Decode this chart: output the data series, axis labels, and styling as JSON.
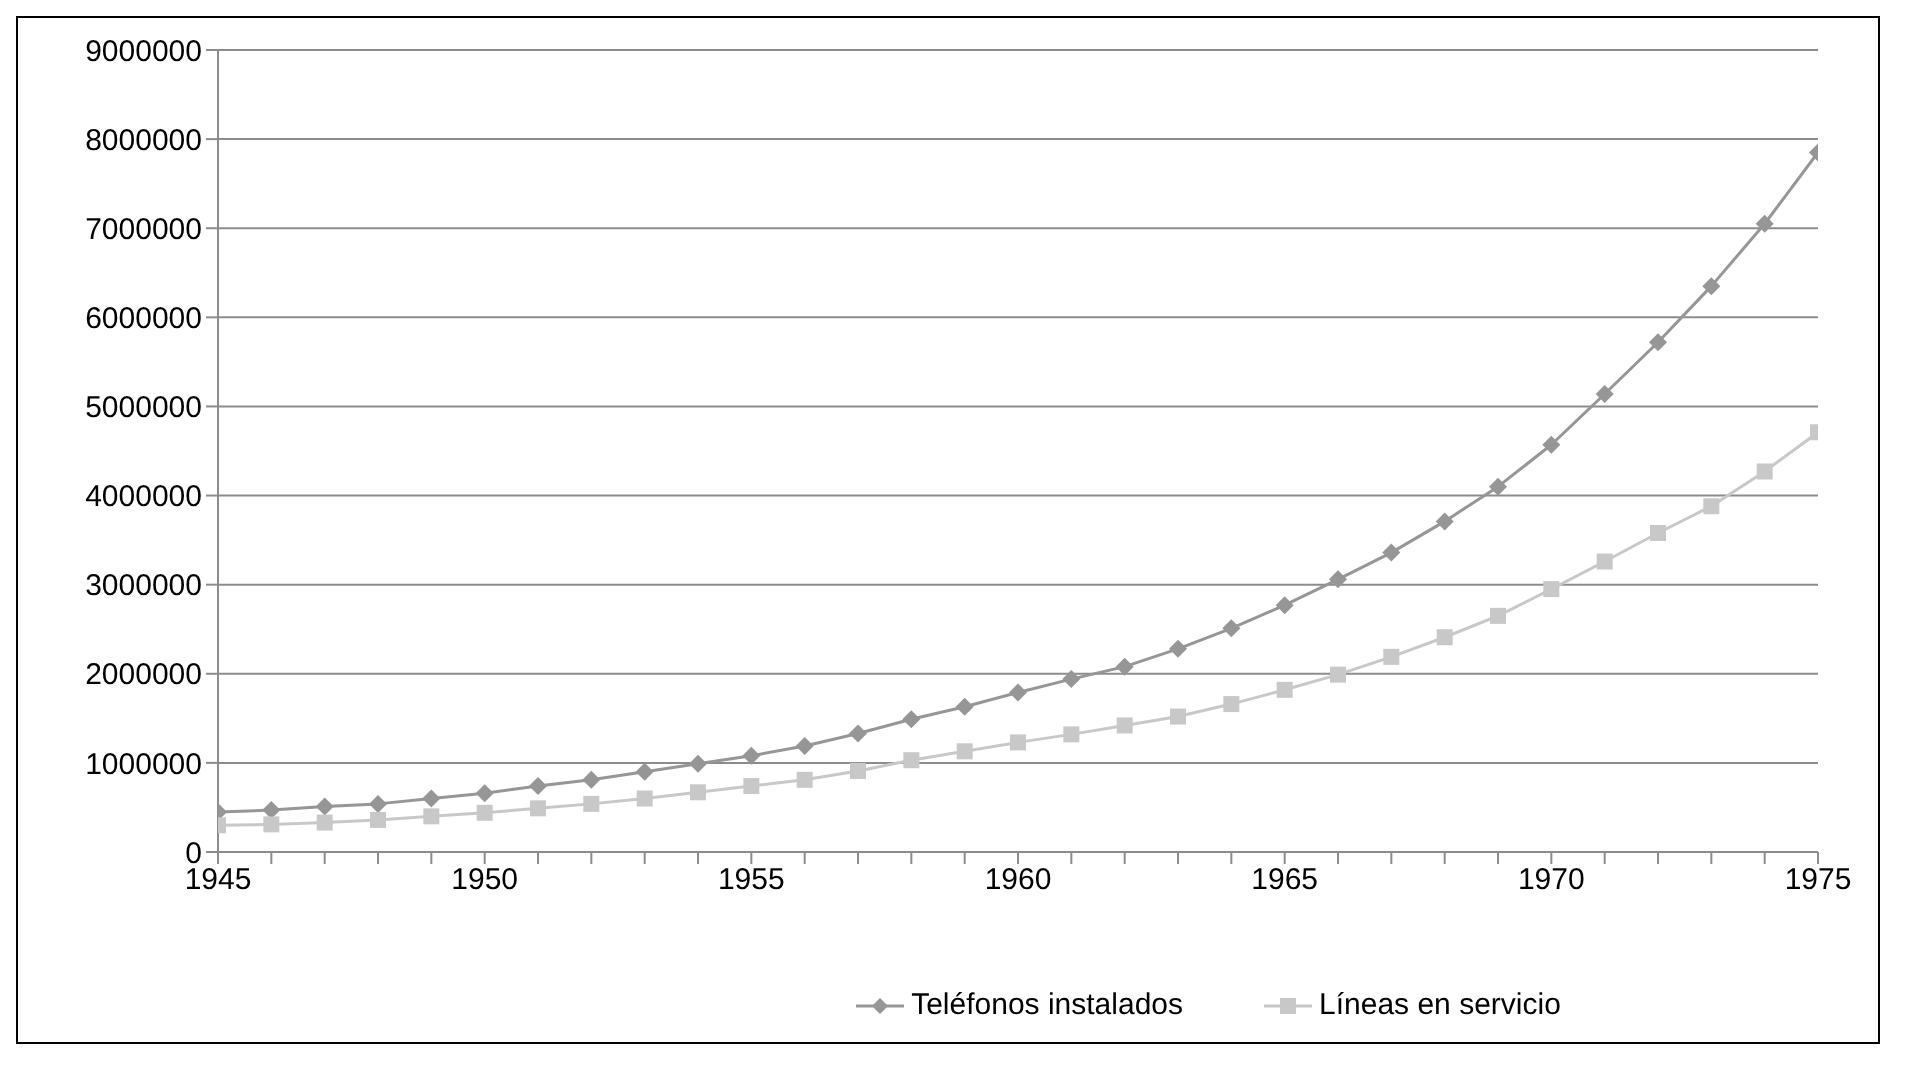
{
  "chart_data": {
    "type": "line",
    "x": [
      1945,
      1946,
      1947,
      1948,
      1949,
      1950,
      1951,
      1952,
      1953,
      1954,
      1955,
      1956,
      1957,
      1958,
      1959,
      1960,
      1961,
      1962,
      1963,
      1964,
      1965,
      1966,
      1967,
      1968,
      1969,
      1970,
      1971,
      1972,
      1973,
      1974,
      1975
    ],
    "series": [
      {
        "name": "Teléfonos instalados",
        "color": "#969696",
        "marker": "diamond",
        "values": [
          450000,
          470000,
          510000,
          540000,
          600000,
          660000,
          740000,
          810000,
          900000,
          990000,
          1080000,
          1190000,
          1330000,
          1490000,
          1630000,
          1790000,
          1940000,
          2080000,
          2280000,
          2510000,
          2770000,
          3060000,
          3360000,
          3710000,
          4100000,
          4570000,
          5140000,
          5720000,
          6350000,
          7050000,
          7850000
        ]
      },
      {
        "name": "Líneas en servicio",
        "color": "#c8c8c8",
        "marker": "square",
        "values": [
          300000,
          310000,
          330000,
          360000,
          400000,
          440000,
          490000,
          540000,
          600000,
          670000,
          740000,
          810000,
          910000,
          1030000,
          1130000,
          1230000,
          1320000,
          1420000,
          1520000,
          1660000,
          1820000,
          1990000,
          2190000,
          2410000,
          2650000,
          2950000,
          3260000,
          3580000,
          3880000,
          4270000,
          4710000
        ]
      }
    ],
    "xlim": [
      1945,
      1975
    ],
    "xticks": [
      1945,
      {
        "value": 1946,
        "label": null
      },
      {
        "value": 1947,
        "label": null
      },
      {
        "value": 1948,
        "label": null
      },
      {
        "value": 1949,
        "label": null
      },
      1950,
      {
        "value": 1951,
        "label": null
      },
      {
        "value": 1952,
        "label": null
      },
      {
        "value": 1953,
        "label": null
      },
      {
        "value": 1954,
        "label": null
      },
      1955,
      {
        "value": 1956,
        "label": null
      },
      {
        "value": 1957,
        "label": null
      },
      {
        "value": 1958,
        "label": null
      },
      {
        "value": 1959,
        "label": null
      },
      1960,
      {
        "value": 1961,
        "label": null
      },
      {
        "value": 1962,
        "label": null
      },
      {
        "value": 1963,
        "label": null
      },
      {
        "value": 1964,
        "label": null
      },
      1965,
      {
        "value": 1966,
        "label": null
      },
      {
        "value": 1967,
        "label": null
      },
      {
        "value": 1968,
        "label": null
      },
      {
        "value": 1969,
        "label": null
      },
      1970,
      {
        "value": 1971,
        "label": null
      },
      {
        "value": 1972,
        "label": null
      },
      {
        "value": 1973,
        "label": null
      },
      {
        "value": 1974,
        "label": null
      },
      1975
    ],
    "ylim": [
      0,
      9000000
    ],
    "yticks": [
      0,
      1000000,
      2000000,
      3000000,
      4000000,
      5000000,
      6000000,
      7000000,
      8000000,
      9000000
    ],
    "grid": "y",
    "legend": "bottom",
    "line_style": "solid"
  }
}
